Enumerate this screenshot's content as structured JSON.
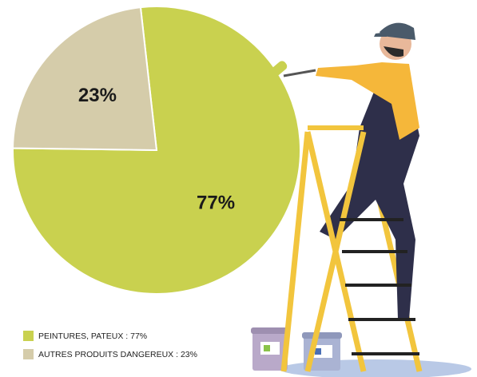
{
  "chart_data": {
    "type": "pie",
    "categories": [
      "PEINTURES, PATEUX : 77%",
      "AUTRES PRODUITS DANGEREUX : 23%"
    ],
    "values": [
      77,
      23
    ],
    "value_labels": [
      "77%",
      "23%"
    ],
    "colors": [
      "#c9d14f",
      "#d5ccaa"
    ]
  }
}
